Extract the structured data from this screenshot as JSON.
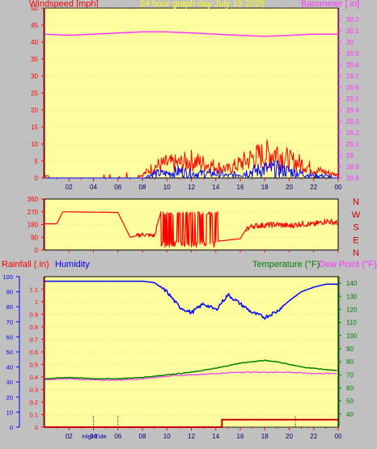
{
  "colors": {
    "plot_bg": "#ffffa0",
    "panel_bg": "#c0c0c0",
    "axis_red": "#ff0000",
    "magenta": "#ff33ff",
    "blue": "#0000ff",
    "green": "#008000",
    "title_yellow": "#ffff00",
    "dark_red": "#cc0000"
  },
  "chart_data": [
    {
      "type": "line",
      "title": "24 hour graph day   July 15 2025",
      "y_left_label": "Windspeed [mph]",
      "y_right_label": "Barometer [.in]",
      "ylim_left": [
        0,
        50
      ],
      "ylim_right": [
        28.8,
        30.3
      ],
      "y_left_ticks": [
        "0",
        "5",
        "10",
        "15",
        "20",
        "25",
        "30",
        "35",
        "40",
        "45",
        "50"
      ],
      "y_right_ticks": [
        "28.8",
        "28.9",
        "29",
        "29.1",
        "29.2",
        "29.3",
        "29.4",
        "29.5",
        "29.6",
        "29.7",
        "29.8",
        "29.9",
        "30",
        "30.1",
        "30.2"
      ],
      "x_ticks": [
        "02",
        "04",
        "06",
        "08",
        "10",
        "12",
        "14",
        "16",
        "18",
        "20",
        "22",
        "00"
      ],
      "series": [
        {
          "label": "barometer",
          "x": [
            0,
            2,
            4,
            6,
            8,
            10,
            12,
            14,
            16,
            18,
            20,
            22,
            24
          ],
          "y": [
            30.07,
            30.06,
            30.07,
            30.08,
            30.09,
            30.09,
            30.08,
            30.07,
            30.06,
            30.05,
            30.06,
            30.07,
            30.07
          ]
        },
        {
          "label": "gust",
          "x": [
            0,
            2,
            4,
            6,
            8,
            9,
            10,
            11,
            12,
            13,
            14,
            15,
            16,
            17,
            18,
            19,
            20,
            21,
            22,
            23,
            24
          ],
          "y": [
            1,
            0,
            0,
            0,
            1,
            4,
            5,
            5,
            6,
            5,
            4,
            3,
            5,
            7,
            8,
            9,
            6,
            5,
            3,
            2,
            1
          ]
        },
        {
          "label": "average wind",
          "x": [
            0,
            2,
            4,
            6,
            8,
            9,
            10,
            11,
            12,
            13,
            14,
            15,
            16,
            17,
            18,
            19,
            20,
            21,
            22,
            23,
            24
          ],
          "y": [
            0,
            0,
            0,
            0,
            0,
            2,
            2,
            3,
            2,
            2,
            2,
            1,
            2,
            3,
            4,
            4,
            3,
            2,
            1,
            1,
            0
          ]
        }
      ]
    },
    {
      "type": "line",
      "ylim": [
        0,
        360
      ],
      "y_ticks": [
        "0",
        "90",
        "180",
        "270",
        "360"
      ],
      "direction_labels": [
        "N",
        "W",
        "S",
        "E",
        "N"
      ],
      "series": [
        {
          "label": "wind direction",
          "x": [
            0,
            1,
            1.5,
            6,
            7,
            8,
            9,
            9.5,
            10,
            11,
            12,
            13,
            14,
            15,
            16,
            16.5,
            17,
            18,
            19,
            20,
            21,
            22,
            23,
            24
          ],
          "y": [
            185,
            185,
            270,
            265,
            90,
            110,
            100,
            270,
            20,
            270,
            40,
            270,
            60,
            70,
            80,
            150,
            170,
            175,
            180,
            170,
            185,
            180,
            205,
            190
          ]
        }
      ]
    },
    {
      "type": "line",
      "y_left_label": "Rainfall (.in)",
      "y_left_label2": "Humidity",
      "y_right_label": "Temperature (°F)",
      "y_right_label2": "Dew Point (°F)",
      "ylim_left_rain": [
        0,
        1.2
      ],
      "ylim_left_humidity": [
        0,
        100
      ],
      "ylim_right": [
        30,
        145
      ],
      "y_rain_ticks": [
        "0",
        "0.1",
        "0.2",
        "0.3",
        "0.4",
        "0.5",
        "0.6",
        "0.7",
        "0.8",
        "0.9",
        "1",
        "1.1"
      ],
      "y_humidity_ticks": [
        "0",
        "10",
        "20",
        "30",
        "40",
        "50",
        "60",
        "70",
        "80",
        "90",
        "100"
      ],
      "y_right_ticks": [
        "40",
        "50",
        "60",
        "70",
        "80",
        "90",
        "100",
        "110",
        "120",
        "130",
        "140"
      ],
      "x_ticks": [
        "02",
        "04",
        "06",
        "08",
        "10",
        "12",
        "14",
        "16",
        "18",
        "20",
        "22",
        "00"
      ],
      "x_marker_labels": [
        "High",
        "Tide"
      ],
      "series": [
        {
          "label": "humidity",
          "x": [
            0,
            2,
            4,
            6,
            8,
            9,
            10,
            11,
            12,
            13,
            14,
            15,
            16,
            17,
            18,
            19,
            20,
            21,
            22,
            23,
            24
          ],
          "y": [
            97,
            97,
            97,
            97,
            97,
            96,
            90,
            80,
            76,
            82,
            78,
            88,
            82,
            76,
            73,
            77,
            84,
            90,
            93,
            95,
            95
          ]
        },
        {
          "label": "temperature",
          "x": [
            0,
            2,
            4,
            6,
            8,
            10,
            12,
            14,
            16,
            17,
            18,
            19,
            20,
            21,
            22,
            23,
            24
          ],
          "y": [
            67,
            68,
            67,
            67,
            68,
            70,
            72,
            75,
            79,
            80,
            81,
            80,
            78,
            76,
            75,
            74,
            73
          ]
        },
        {
          "label": "dew point",
          "x": [
            0,
            2,
            4,
            6,
            8,
            10,
            12,
            14,
            16,
            18,
            20,
            22,
            24
          ],
          "y": [
            66,
            67,
            66,
            66,
            67,
            69,
            70,
            71,
            72,
            72,
            72,
            71,
            71
          ]
        },
        {
          "label": "rainfall",
          "x": [
            0,
            14.5,
            14.5,
            24
          ],
          "y": [
            0,
            0,
            0.06,
            0.06
          ]
        }
      ]
    }
  ]
}
